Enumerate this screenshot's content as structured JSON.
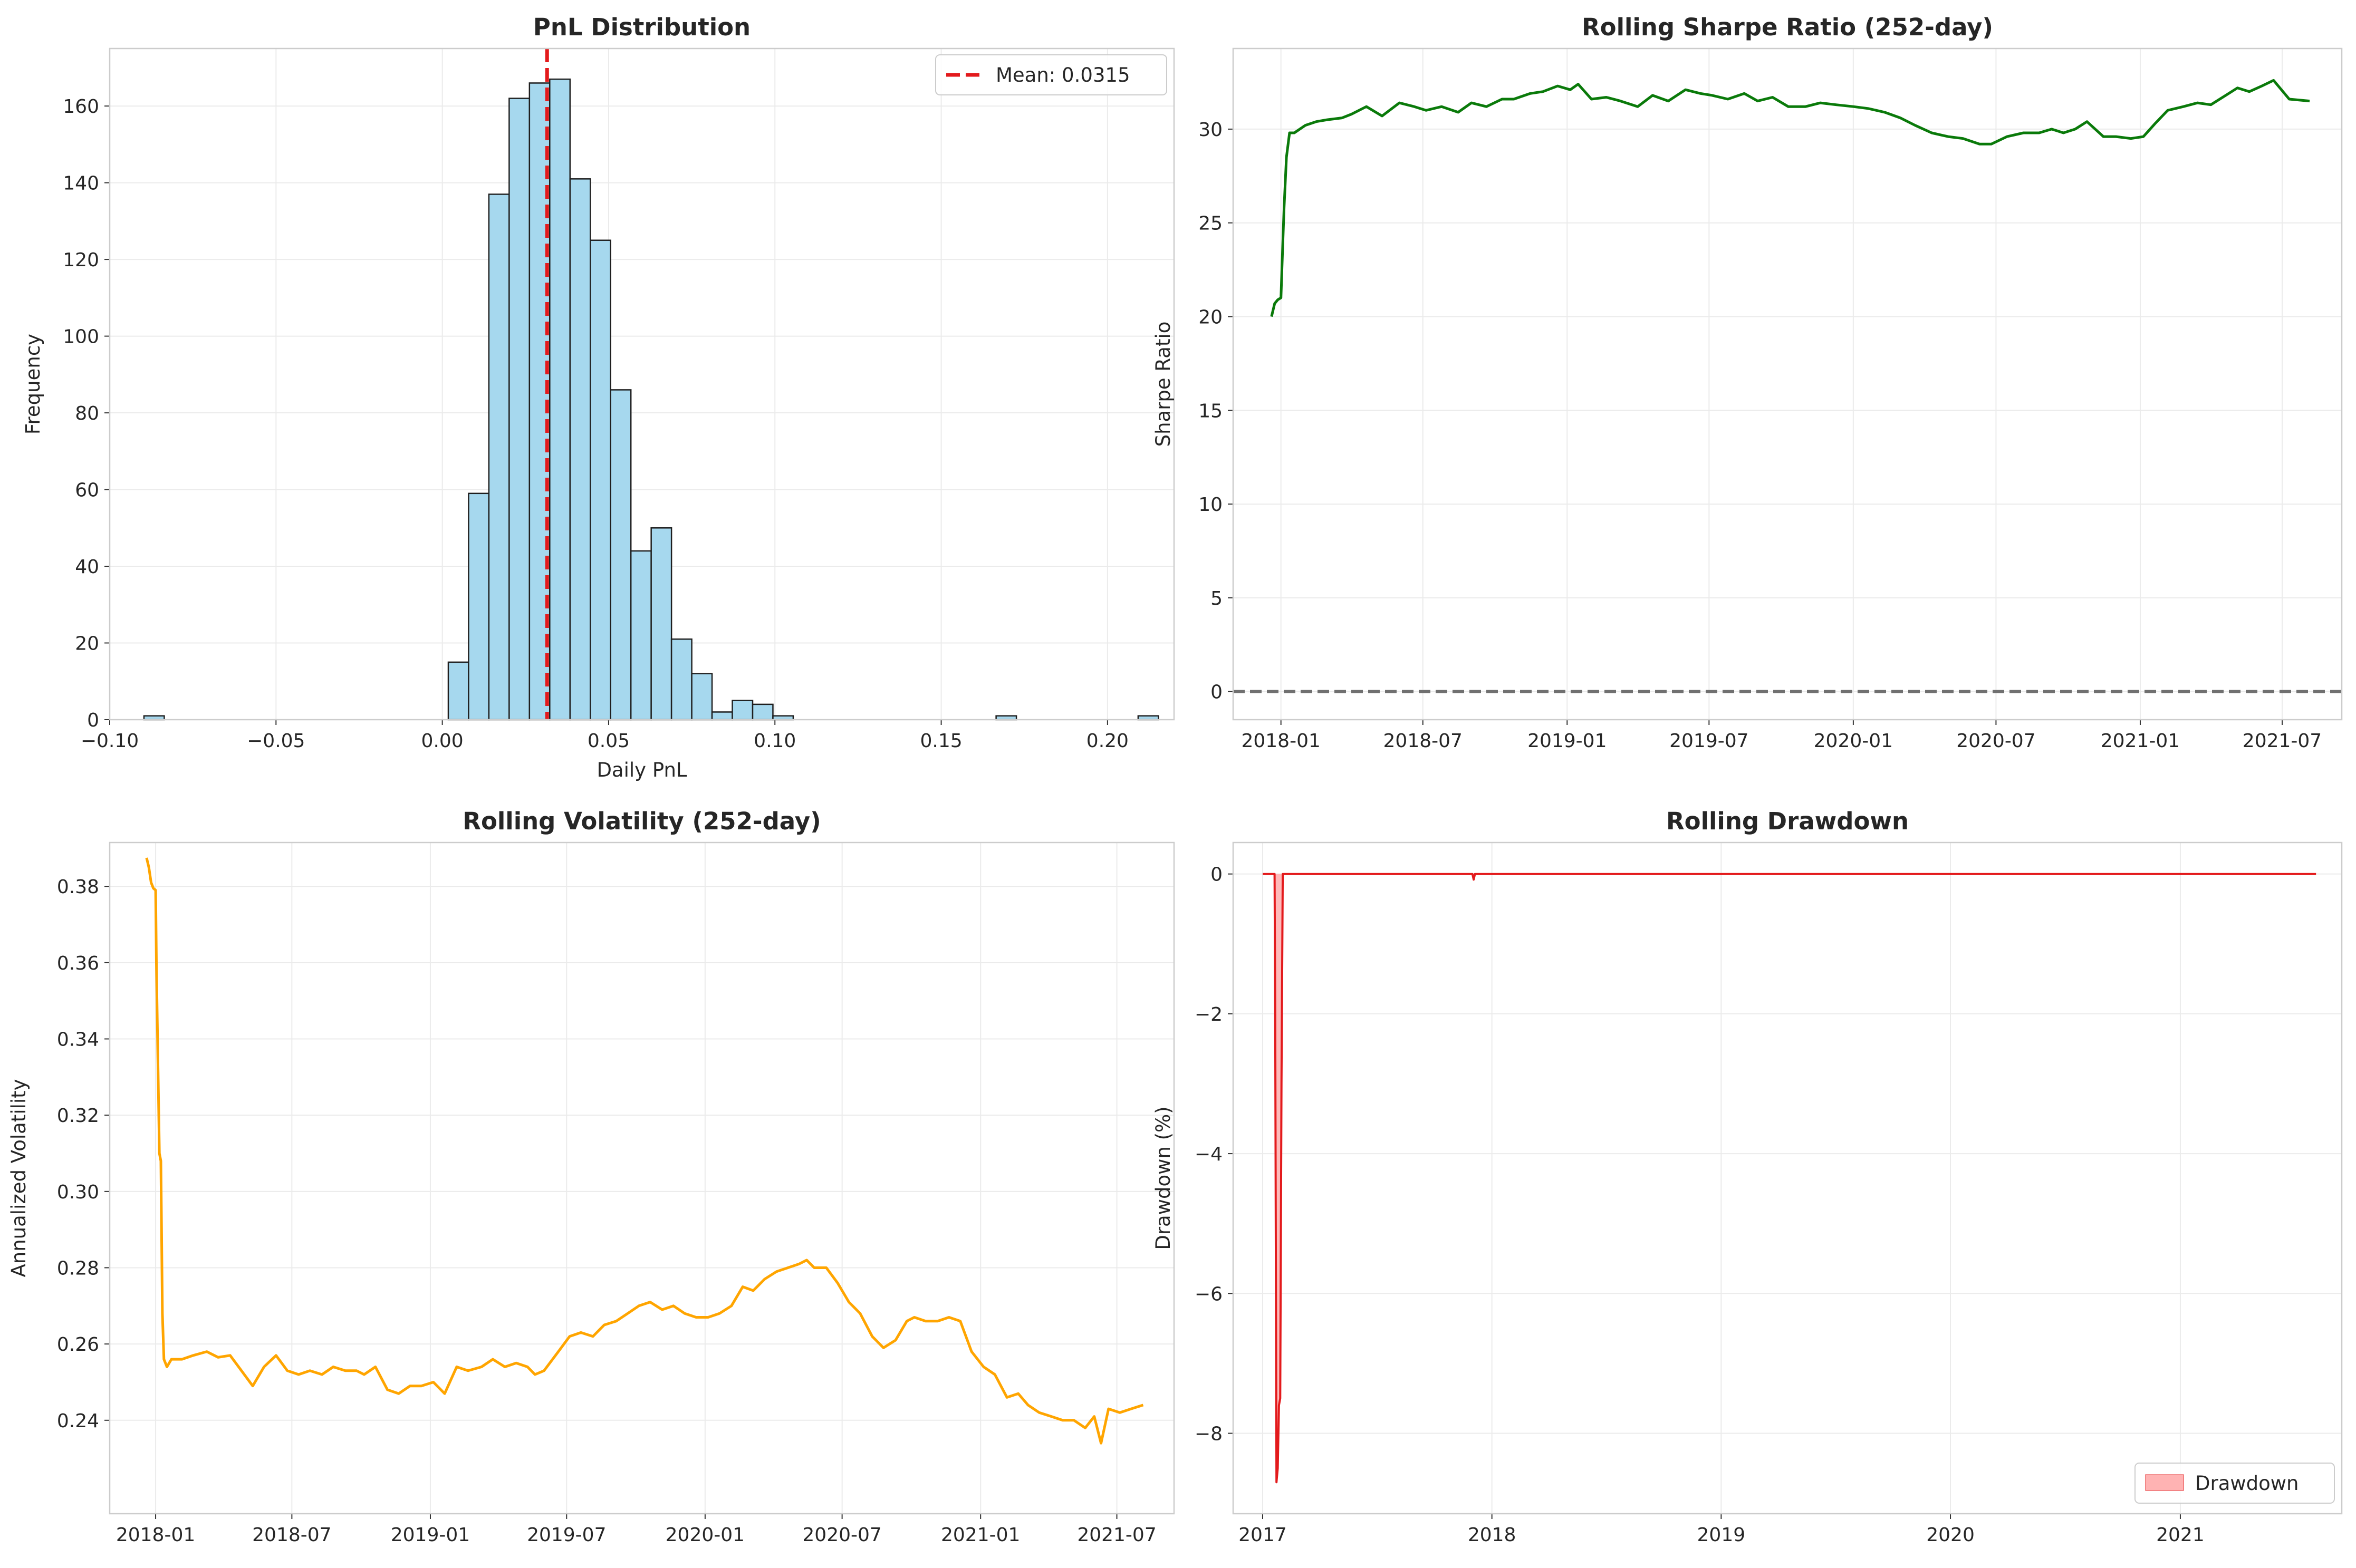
{
  "colors": {
    "grid": "#ebebeb",
    "spine": "#cccccc",
    "hist_fill": "#a6d8ee",
    "hist_edge": "#1f1f1f",
    "mean_line": "#e31a1c",
    "sharpe_line": "#0a7a0a",
    "zero_line": "#707070",
    "vol_line": "#ffa500",
    "dd_line": "#e31a1c",
    "dd_fill": "#ffb3b3"
  },
  "chart_data": [
    {
      "type": "bar",
      "title": "PnL Distribution",
      "xlabel": "Daily PnL",
      "ylabel": "Frequency",
      "xlim": [
        -0.1,
        0.22
      ],
      "ylim": [
        0,
        175
      ],
      "xticks": [
        -0.1,
        -0.05,
        0.0,
        0.05,
        0.1,
        0.15,
        0.2
      ],
      "xtick_labels": [
        "−0.10",
        "−0.05",
        "0.00",
        "0.05",
        "0.10",
        "0.15",
        "0.20"
      ],
      "yticks": [
        0,
        20,
        40,
        60,
        80,
        100,
        120,
        140,
        160
      ],
      "yticks_labels": [
        "0",
        "20",
        "40",
        "60",
        "80",
        "100",
        "120",
        "140",
        "160"
      ],
      "grid": true,
      "bins": {
        "start": -0.0897,
        "width": 0.0061,
        "counts": [
          1,
          0,
          0,
          0,
          0,
          0,
          0,
          0,
          0,
          0,
          0,
          0,
          0,
          0,
          0,
          15,
          59,
          137,
          162,
          166,
          167,
          141,
          125,
          86,
          44,
          50,
          21,
          12,
          2,
          5,
          4,
          1,
          0,
          0,
          0,
          0,
          0,
          0,
          0,
          0,
          0,
          0,
          1,
          0,
          0,
          0,
          0,
          0,
          0,
          1
        ]
      },
      "mean": 0.0315,
      "legend": {
        "label": "Mean: 0.0315",
        "position": "upper right"
      }
    },
    {
      "type": "line",
      "title": "Rolling Sharpe Ratio (252-day)",
      "xlabel": "",
      "ylabel": "Sharpe Ratio",
      "xlim": [
        "2017-11-01",
        "2021-09-15"
      ],
      "ylim": [
        -1.5,
        34.3
      ],
      "xtick_labels": [
        "2018-01",
        "2018-07",
        "2019-01",
        "2019-07",
        "2020-01",
        "2020-07",
        "2021-01",
        "2021-07"
      ],
      "xtick_dates": [
        "2018-01-01",
        "2018-07-01",
        "2019-01-01",
        "2019-07-01",
        "2020-01-01",
        "2020-07-01",
        "2021-01-01",
        "2021-07-01"
      ],
      "yticks": [
        0,
        5,
        10,
        15,
        20,
        25,
        30
      ],
      "ytick_labels": [
        "0",
        "5",
        "10",
        "15",
        "20",
        "25",
        "30"
      ],
      "grid": true,
      "reference_line": 0,
      "series": [
        {
          "x": [
            "2017-12-20",
            "2017-12-24",
            "2017-12-28",
            "2018-01-01",
            "2018-01-03",
            "2018-01-05",
            "2018-01-08",
            "2018-01-12",
            "2018-01-18",
            "2018-02-01",
            "2018-02-15",
            "2018-03-01",
            "2018-03-20",
            "2018-04-01",
            "2018-04-20",
            "2018-05-10",
            "2018-06-01",
            "2018-06-20",
            "2018-07-05",
            "2018-07-25",
            "2018-08-15",
            "2018-09-01",
            "2018-09-20",
            "2018-10-10",
            "2018-10-25",
            "2018-11-15",
            "2018-12-01",
            "2018-12-20",
            "2019-01-05",
            "2019-01-15",
            "2019-02-01",
            "2019-02-20",
            "2019-03-10",
            "2019-04-01",
            "2019-04-20",
            "2019-05-10",
            "2019-06-01",
            "2019-06-20",
            "2019-07-05",
            "2019-07-25",
            "2019-08-15",
            "2019-09-01",
            "2019-09-20",
            "2019-10-10",
            "2019-11-01",
            "2019-11-20",
            "2019-12-10",
            "2020-01-01",
            "2020-01-20",
            "2020-02-10",
            "2020-03-01",
            "2020-03-20",
            "2020-04-10",
            "2020-05-01",
            "2020-05-20",
            "2020-06-10",
            "2020-06-25",
            "2020-07-15",
            "2020-08-05",
            "2020-08-25",
            "2020-09-10",
            "2020-09-25",
            "2020-10-10",
            "2020-10-25",
            "2020-11-15",
            "2020-12-01",
            "2020-12-20",
            "2021-01-05",
            "2021-01-20",
            "2021-02-05",
            "2021-02-25",
            "2021-03-15",
            "2021-04-01",
            "2021-04-20",
            "2021-05-05",
            "2021-05-20",
            "2021-06-05",
            "2021-06-20",
            "2021-07-10",
            "2021-08-05"
          ],
          "values": [
            20.0,
            20.7,
            20.9,
            21.0,
            23.5,
            25.8,
            28.5,
            29.8,
            29.8,
            30.2,
            30.4,
            30.5,
            30.6,
            30.8,
            31.2,
            30.7,
            31.4,
            31.2,
            31.0,
            31.2,
            30.9,
            31.4,
            31.2,
            31.6,
            31.6,
            31.9,
            32.0,
            32.3,
            32.1,
            32.4,
            31.6,
            31.7,
            31.5,
            31.2,
            31.8,
            31.5,
            32.1,
            31.9,
            31.8,
            31.6,
            31.9,
            31.5,
            31.7,
            31.2,
            31.2,
            31.4,
            31.3,
            31.2,
            31.1,
            30.9,
            30.6,
            30.2,
            29.8,
            29.6,
            29.5,
            29.2,
            29.2,
            29.6,
            29.8,
            29.8,
            30.0,
            29.8,
            30.0,
            30.4,
            29.6,
            29.6,
            29.5,
            29.6,
            30.3,
            31.0,
            31.2,
            31.4,
            31.3,
            31.8,
            32.2,
            32.0,
            32.3,
            32.6,
            31.6,
            31.5
          ]
        }
      ]
    },
    {
      "type": "line",
      "title": "Rolling Volatility (252-day)",
      "xlabel": "",
      "ylabel": "Annualized Volatility",
      "xlim": [
        "2017-11-01",
        "2021-09-15"
      ],
      "ylim": [
        0.2155,
        0.3915
      ],
      "xtick_labels": [
        "2018-01",
        "2018-07",
        "2019-01",
        "2019-07",
        "2020-01",
        "2020-07",
        "2021-01",
        "2021-07"
      ],
      "xtick_dates": [
        "2018-01-01",
        "2018-07-01",
        "2019-01-01",
        "2019-07-01",
        "2020-01-01",
        "2020-07-01",
        "2021-01-01",
        "2021-07-01"
      ],
      "yticks": [
        0.24,
        0.26,
        0.28,
        0.3,
        0.32,
        0.34,
        0.36,
        0.38
      ],
      "ytick_labels": [
        "0.24",
        "0.26",
        "0.28",
        "0.30",
        "0.32",
        "0.34",
        "0.36",
        "0.38"
      ],
      "grid": true,
      "series": [
        {
          "x": [
            "2017-12-20",
            "2017-12-23",
            "2017-12-26",
            "2017-12-29",
            "2018-01-01",
            "2018-01-02",
            "2018-01-04",
            "2018-01-06",
            "2018-01-08",
            "2018-01-10",
            "2018-01-12",
            "2018-01-16",
            "2018-01-22",
            "2018-02-05",
            "2018-02-20",
            "2018-03-10",
            "2018-03-25",
            "2018-04-10",
            "2018-04-25",
            "2018-05-10",
            "2018-05-25",
            "2018-06-10",
            "2018-06-25",
            "2018-07-10",
            "2018-07-25",
            "2018-08-10",
            "2018-08-25",
            "2018-09-10",
            "2018-09-25",
            "2018-10-05",
            "2018-10-20",
            "2018-11-05",
            "2018-11-20",
            "2018-12-05",
            "2018-12-20",
            "2019-01-05",
            "2019-01-20",
            "2019-02-05",
            "2019-02-20",
            "2019-03-10",
            "2019-03-25",
            "2019-04-10",
            "2019-04-25",
            "2019-05-10",
            "2019-05-20",
            "2019-06-01",
            "2019-06-20",
            "2019-07-05",
            "2019-07-20",
            "2019-08-05",
            "2019-08-20",
            "2019-09-05",
            "2019-09-20",
            "2019-10-05",
            "2019-10-20",
            "2019-11-05",
            "2019-11-20",
            "2019-12-05",
            "2019-12-20",
            "2020-01-05",
            "2020-01-20",
            "2020-02-05",
            "2020-02-20",
            "2020-03-05",
            "2020-03-20",
            "2020-04-05",
            "2020-04-20",
            "2020-05-05",
            "2020-05-15",
            "2020-05-25",
            "2020-06-10",
            "2020-06-25",
            "2020-07-10",
            "2020-07-25",
            "2020-08-10",
            "2020-08-25",
            "2020-09-10",
            "2020-09-25",
            "2020-10-05",
            "2020-10-20",
            "2020-11-05",
            "2020-11-20",
            "2020-12-05",
            "2020-12-20",
            "2021-01-05",
            "2021-01-20",
            "2021-02-05",
            "2021-02-20",
            "2021-03-05",
            "2021-03-20",
            "2021-04-05",
            "2021-04-20",
            "2021-05-05",
            "2021-05-20",
            "2021-06-01",
            "2021-06-10",
            "2021-06-20",
            "2021-07-05",
            "2021-07-20",
            "2021-08-05"
          ],
          "values": [
            0.3875,
            0.385,
            0.381,
            0.3795,
            0.379,
            0.36,
            0.335,
            0.31,
            0.308,
            0.268,
            0.256,
            0.254,
            0.256,
            0.256,
            0.257,
            0.258,
            0.2565,
            0.257,
            0.253,
            0.249,
            0.254,
            0.257,
            0.253,
            0.252,
            0.253,
            0.252,
            0.254,
            0.253,
            0.253,
            0.252,
            0.254,
            0.248,
            0.247,
            0.249,
            0.249,
            0.25,
            0.247,
            0.254,
            0.253,
            0.254,
            0.256,
            0.254,
            0.255,
            0.254,
            0.252,
            0.253,
            0.258,
            0.262,
            0.263,
            0.262,
            0.265,
            0.266,
            0.268,
            0.27,
            0.271,
            0.269,
            0.27,
            0.268,
            0.267,
            0.267,
            0.268,
            0.27,
            0.275,
            0.274,
            0.277,
            0.279,
            0.28,
            0.281,
            0.282,
            0.28,
            0.28,
            0.276,
            0.271,
            0.268,
            0.262,
            0.259,
            0.261,
            0.266,
            0.267,
            0.266,
            0.266,
            0.267,
            0.266,
            0.258,
            0.254,
            0.252,
            0.246,
            0.247,
            0.244,
            0.242,
            0.241,
            0.24,
            0.24,
            0.238,
            0.241,
            0.234,
            0.243,
            0.242,
            0.243,
            0.244
          ]
        }
      ]
    },
    {
      "type": "area",
      "title": "Rolling Drawdown",
      "xlabel": "",
      "ylabel": "Drawdown (%)",
      "xlim": [
        "2016-11-15",
        "2021-09-15"
      ],
      "ylim": [
        -9.15,
        0.45
      ],
      "xtick_labels": [
        "2017",
        "2018",
        "2019",
        "2020",
        "2021"
      ],
      "xtick_dates": [
        "2017-01-01",
        "2018-01-01",
        "2019-01-01",
        "2020-01-01",
        "2021-01-01"
      ],
      "yticks": [
        -8,
        -6,
        -4,
        -2,
        0
      ],
      "ytick_labels": [
        "−8",
        "−6",
        "−4",
        "−2",
        "0"
      ],
      "grid": true,
      "legend": {
        "label": "Drawdown",
        "position": "lower right"
      },
      "series": [
        {
          "name": "Drawdown",
          "x": [
            "2017-01-01",
            "2017-01-15",
            "2017-01-20",
            "2017-01-21",
            "2017-01-23",
            "2017-01-25",
            "2017-01-27",
            "2017-01-29",
            "2017-01-31",
            "2017-02-02",
            "2017-02-04",
            "2017-02-06",
            "2017-02-10",
            "2017-12-01",
            "2017-12-03",
            "2017-12-05",
            "2021-08-05"
          ],
          "values": [
            0,
            0,
            0,
            -2.0,
            -8.7,
            -8.5,
            -7.6,
            -7.5,
            -3.0,
            0,
            0,
            0,
            0,
            0,
            -0.08,
            0,
            0
          ]
        }
      ]
    }
  ]
}
